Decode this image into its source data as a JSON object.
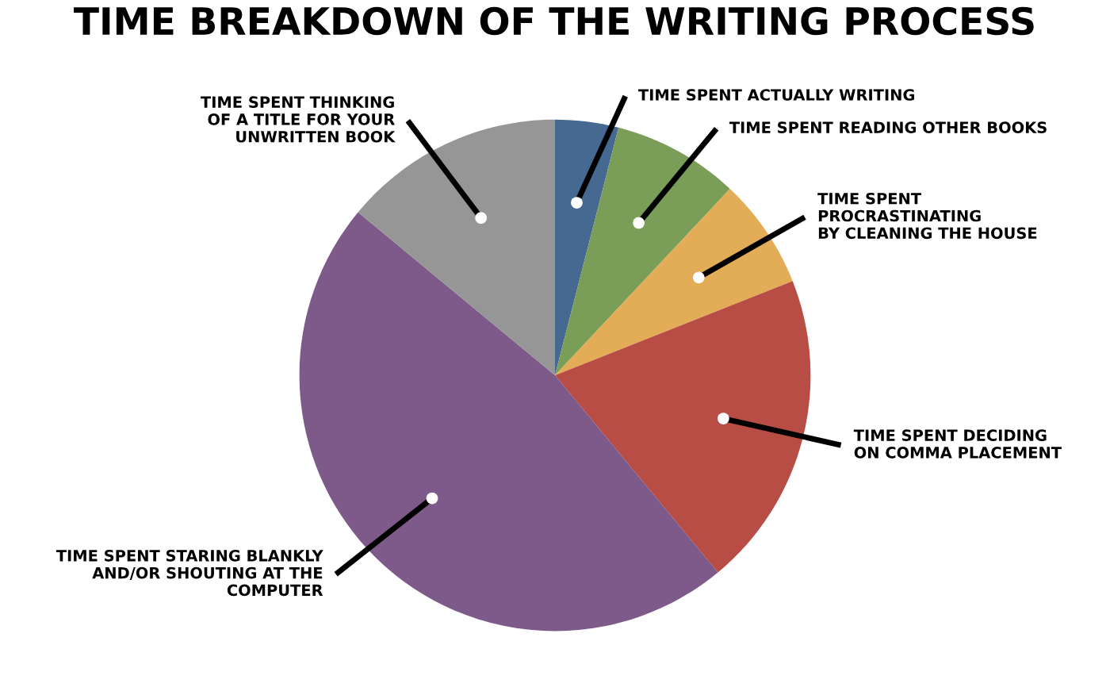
{
  "chart_data": {
    "type": "pie",
    "title": "TIME BREAKDOWN OF THE WRITING PROCESS",
    "categories": [
      "TIME SPENT ACTUALLY WRITING",
      "TIME SPENT READING OTHER BOOKS",
      "TIME SPENT\nPROCRASTINATING\nBY CLEANING THE HOUSE",
      "TIME SPENT DECIDING\nON COMMA PLACEMENT",
      "TIME SPENT STARING BLANKLY\nAND/OR SHOUTING AT THE\nCOMPUTER",
      "TIME SPENT THINKING\nOF A TITLE FOR YOUR\nUNWRITTEN BOOK"
    ],
    "values": [
      4,
      8,
      7,
      20,
      47,
      14
    ],
    "colors": [
      "#456990",
      "#7a9e58",
      "#e3ac56",
      "#b84d45",
      "#7e5a8a",
      "#969696"
    ]
  }
}
